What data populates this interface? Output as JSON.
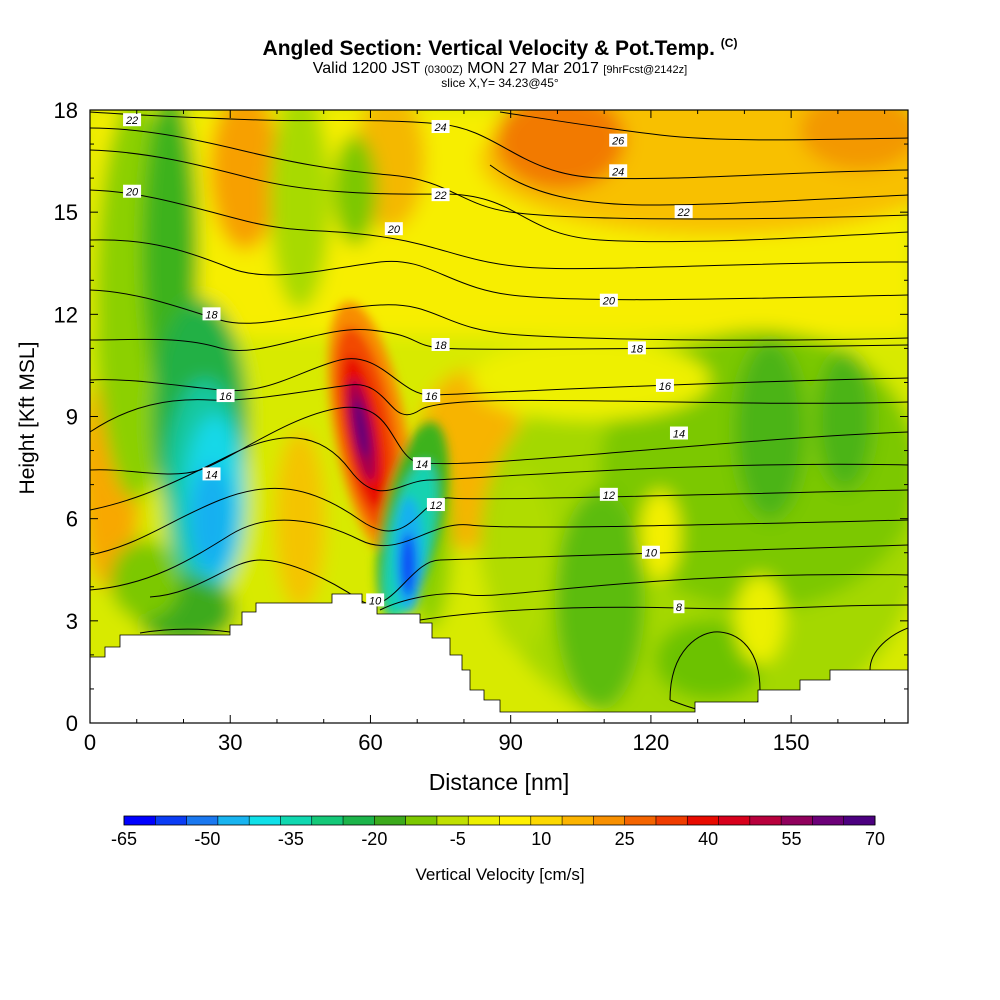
{
  "header": {
    "title_main": "Angled Section: Vertical Velocity & Pot.Temp.",
    "title_units": "(C)",
    "valid_prefix": "Valid 1200 JST",
    "valid_utc": "(0300Z)",
    "valid_date": "MON 27 Mar 2017",
    "forecast": "[9hrFcst@2142z]",
    "slice": "slice X,Y= 34.23@45°"
  },
  "chart_data": {
    "type": "heatmap",
    "xlabel": "Distance [nm]",
    "ylabel": "Height [Kft MSL]",
    "xlim": [
      0,
      175
    ],
    "ylim": [
      0,
      18
    ],
    "x_ticks": [
      0,
      30,
      60,
      90,
      120,
      150
    ],
    "y_ticks": [
      0,
      3,
      6,
      9,
      12,
      15,
      18
    ],
    "colorbar": {
      "label": "Vertical Velocity [cm/s]",
      "ticks": [
        -65,
        -50,
        -35,
        -20,
        -5,
        10,
        25,
        40,
        55,
        70
      ],
      "colors": [
        "#0000ff",
        "#0a3cf5",
        "#1a78f0",
        "#18b4f0",
        "#10e0e8",
        "#10d8b0",
        "#14c878",
        "#1cb44a",
        "#3caa1c",
        "#7cc800",
        "#c0e000",
        "#ecf000",
        "#fff000",
        "#fcd800",
        "#fcb400",
        "#f89000",
        "#f46400",
        "#f03c00",
        "#e80a00",
        "#d8001c",
        "#b8003c",
        "#90005c",
        "#6c0078",
        "#4c0080"
      ]
    },
    "isotherm_labels": [
      {
        "x": 9,
        "y": 17.7,
        "v": "22"
      },
      {
        "x": 75,
        "y": 17.5,
        "v": "24"
      },
      {
        "x": 113,
        "y": 17.1,
        "v": "26"
      },
      {
        "x": 9,
        "y": 15.6,
        "v": "20"
      },
      {
        "x": 75,
        "y": 15.5,
        "v": "22"
      },
      {
        "x": 113,
        "y": 16.2,
        "v": "24"
      },
      {
        "x": 127,
        "y": 15.0,
        "v": "22"
      },
      {
        "x": 65,
        "y": 14.5,
        "v": "20"
      },
      {
        "x": 111,
        "y": 12.4,
        "v": "20"
      },
      {
        "x": 26,
        "y": 12.0,
        "v": "18"
      },
      {
        "x": 75,
        "y": 11.1,
        "v": "18"
      },
      {
        "x": 117,
        "y": 11.0,
        "v": "18"
      },
      {
        "x": 29,
        "y": 9.6,
        "v": "16"
      },
      {
        "x": 73,
        "y": 9.6,
        "v": "16"
      },
      {
        "x": 123,
        "y": 9.9,
        "v": "16"
      },
      {
        "x": 126,
        "y": 8.5,
        "v": "14"
      },
      {
        "x": 71,
        "y": 7.6,
        "v": "14"
      },
      {
        "x": 26,
        "y": 7.3,
        "v": "14"
      },
      {
        "x": 111,
        "y": 6.7,
        "v": "12"
      },
      {
        "x": 74,
        "y": 6.4,
        "v": "12"
      },
      {
        "x": 120,
        "y": 5.0,
        "v": "10"
      },
      {
        "x": 61,
        "y": 3.6,
        "v": "10"
      },
      {
        "x": 126,
        "y": 3.4,
        "v": "8"
      }
    ]
  }
}
